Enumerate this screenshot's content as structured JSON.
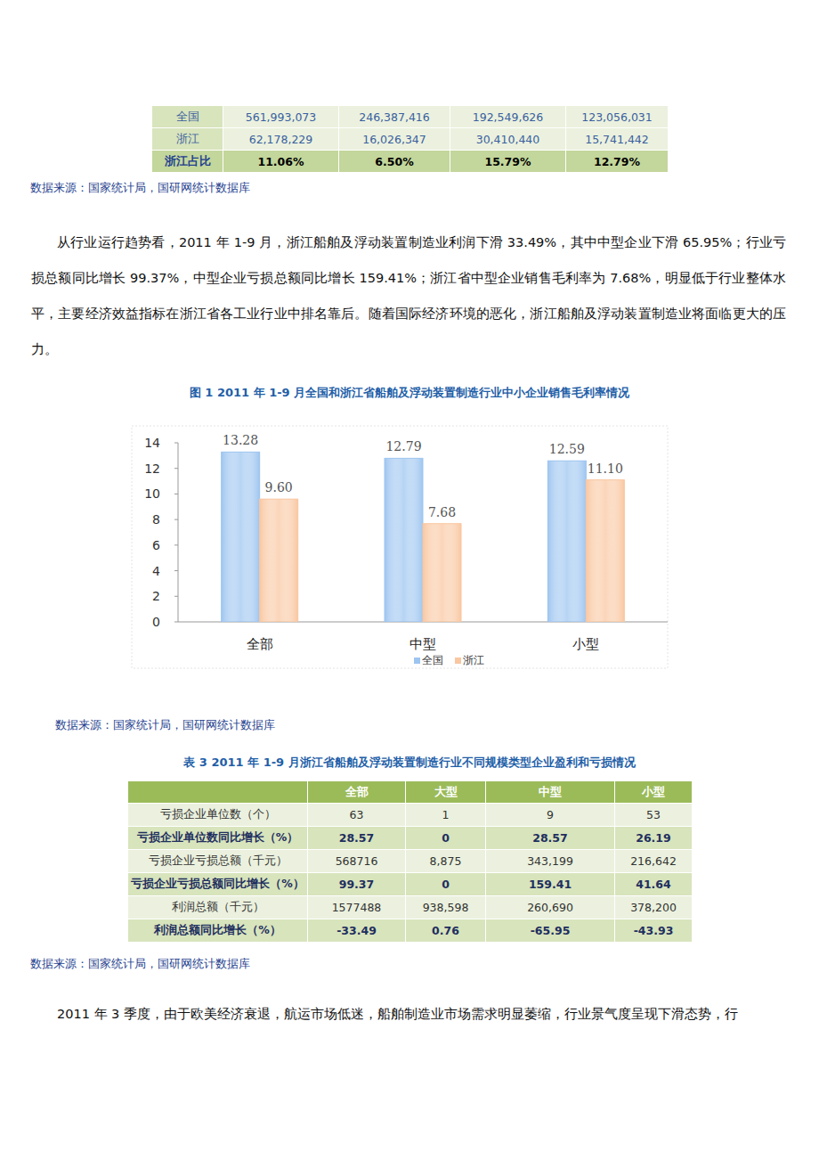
{
  "table_top": {
    "rows": [
      [
        "全国",
        "561,993,073",
        "246,387,416",
        "192,549,626",
        "123,056,031"
      ],
      [
        "浙江",
        "62,178,229",
        "16,026,347",
        "30,410,440",
        "15,741,442"
      ],
      [
        "浙江占比",
        "11.06%",
        "6.50%",
        "15.79%",
        "12.79%"
      ]
    ]
  },
  "source_1": "数据来源：国家统计局，国研网统计数据库",
  "paragraph_1": "从行业运行趋势看，2011 年 1-9 月，浙江船舶及浮动装置制造业利润下滑 33.49%，其中中型企业下滑 65.95%；行业亏损总额同比增长 99.37%，中型企业亏损总额同比增长 159.41%；浙江省中型企业销售毛利率为 7.68%，明显低于行业整体水平，主要经济效益指标在浙江省各工业行业中排名靠后。随着国际经济环境的恶化，浙江船舶及浮动装置制造业将面临更大的压力。",
  "chart_data": {
    "type": "bar",
    "title": "图 1  2011 年 1-9 月全国和浙江省船舶及浮动装置制造行业中小企业销售毛利率情况",
    "categories": [
      "全部",
      "中型",
      "小型"
    ],
    "series": [
      {
        "name": "全国",
        "color": "#9ec5f0",
        "values": [
          13.28,
          12.79,
          12.59
        ],
        "value_labels": [
          "13.28",
          "12.79",
          "12.59"
        ]
      },
      {
        "name": "浙江",
        "color": "#f9c7a1",
        "values": [
          9.6,
          7.68,
          11.1
        ],
        "value_labels": [
          "9.60",
          "7.68",
          "11.10"
        ]
      }
    ],
    "ylim": [
      0,
      14
    ],
    "yticks": [
      0,
      2,
      4,
      6,
      8,
      10,
      12,
      14
    ],
    "data_labels": true,
    "legend": "bottom",
    "grid": false
  },
  "source_2": "数据来源：国家统计局，国研网统计数据库",
  "table_3": {
    "title": "表 3  2011 年 1-9 月浙江省船舶及浮动装置制造行业不同规模类型企业盈利和亏损情况",
    "header": [
      "全部",
      "大型",
      "中型",
      "小型"
    ],
    "rows": [
      [
        "亏损企业单位数（个）",
        "63",
        "1",
        "9",
        "53"
      ],
      [
        "亏损企业单位数同比增长（%）",
        "28.57",
        "0",
        "28.57",
        "26.19"
      ],
      [
        "亏损企业亏损总额（千元）",
        "568716",
        "8,875",
        "343,199",
        "216,642"
      ],
      [
        "亏损企业亏损总额同比增长（%）",
        "99.37",
        "0",
        "159.41",
        "41.64"
      ],
      [
        "利润总额（千元）",
        "1577488",
        "938,598",
        "260,690",
        "378,200"
      ],
      [
        "利润总额同比增长（%）",
        "-33.49",
        "0.76",
        "-65.95",
        "-43.93"
      ]
    ]
  },
  "source_3": "数据来源：国家统计局，国研网统计数据库",
  "paragraph_2": "2011 年 3 季度，由于欧美经济衰退，航运市场低迷，船舶制造业市场需求明显萎缩，行业景气度呈现下滑态势，行"
}
